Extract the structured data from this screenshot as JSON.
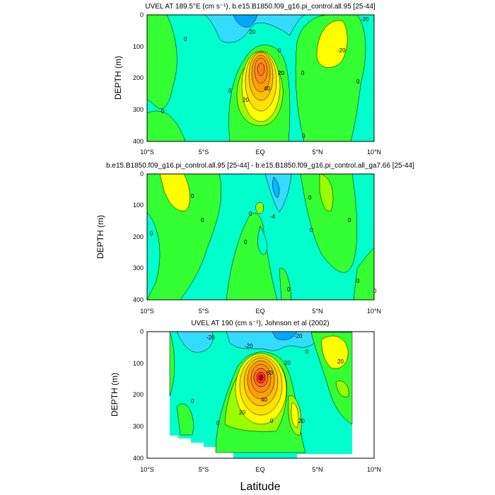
{
  "chart_data": [
    {
      "type": "contour",
      "title": "UVEL AT 189.5°E (cm s⁻¹), b.e15.B1850.f09_g16.pi_control.all.95 [25-44]",
      "ylabel": "DEPTH (m)",
      "xlabel": "",
      "xlim": [
        -10,
        10
      ],
      "ylim": [
        400,
        0
      ],
      "xticks": [
        "10°S",
        "5°S",
        "EQ",
        "5°N",
        "10°N"
      ],
      "yticks": [
        "0",
        "100",
        "200",
        "300",
        "400"
      ],
      "contour_labels": [
        "0",
        "0",
        "20",
        "20",
        "-20",
        "20",
        "40",
        "0",
        "0",
        "0",
        "0",
        "-20",
        "0"
      ],
      "features": [
        {
          "kind": "max",
          "lat": 0.0,
          "depth": 180,
          "value": 70
        },
        {
          "kind": "max",
          "lat": 6.5,
          "depth": 70,
          "value": 25
        },
        {
          "kind": "min",
          "lat": -1.5,
          "depth": 15,
          "value": -25
        }
      ]
    },
    {
      "type": "contour",
      "title": "b.e15.B1850.f09_g16.pi_control.all.95 [25-44] - b.e15.B1850.f09_g16.pi_control.all_ga7.66 [25-44]",
      "ylabel": "DEPTH (m)",
      "xlabel": "",
      "xlim": [
        -10,
        10
      ],
      "ylim": [
        400,
        0
      ],
      "xticks": [
        "10°S",
        "5°S",
        "EQ",
        "5°N",
        "10°N"
      ],
      "yticks": [
        "0",
        "100",
        "200",
        "300",
        "400"
      ],
      "contour_labels": [
        "0",
        "0",
        "0",
        "0",
        "0",
        "0",
        "0",
        "0",
        "0",
        "0",
        "-4",
        "0"
      ],
      "features": [
        {
          "kind": "max",
          "lat": -7.5,
          "depth": 60,
          "value": 12
        },
        {
          "kind": "max",
          "lat": 5.2,
          "depth": 70,
          "value": 10
        },
        {
          "kind": "min",
          "lat": 1.2,
          "depth": 100,
          "value": -6
        }
      ]
    },
    {
      "type": "contour",
      "title": "UVEL AT 190 (cm s⁻¹), Johnson et al (2002)",
      "ylabel": "DEPTH (m)",
      "xlabel": "Latitude",
      "xlim": [
        -10,
        10
      ],
      "ylim": [
        400,
        0
      ],
      "xticks": [
        "10°S",
        "5°S",
        "EQ",
        "5°N",
        "10°N"
      ],
      "yticks": [
        "0",
        "100",
        "200",
        "300",
        "400"
      ],
      "contour_labels": [
        "-20",
        "-20",
        "20",
        "60",
        "40",
        "20",
        "20",
        "0",
        "0",
        "0",
        "20",
        "0",
        "-20"
      ],
      "features": [
        {
          "kind": "max",
          "lat": 0.0,
          "depth": 150,
          "value": 90
        },
        {
          "kind": "max",
          "lat": 5.5,
          "depth": 60,
          "value": 30
        },
        {
          "kind": "max",
          "lat": 3.0,
          "depth": 240,
          "value": 25
        },
        {
          "kind": "min",
          "lat": 2.0,
          "depth": 20,
          "value": -30
        },
        {
          "kind": "min",
          "lat": -4.5,
          "depth": 20,
          "value": -22
        }
      ]
    }
  ]
}
